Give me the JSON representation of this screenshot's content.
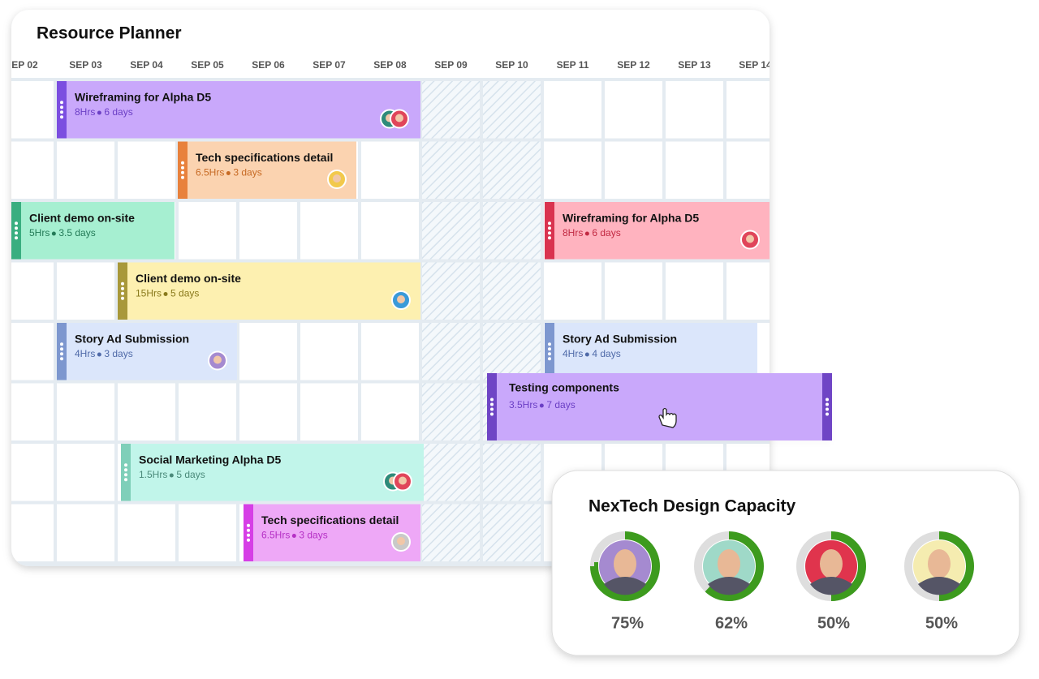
{
  "header": {
    "title": "Resource Planner"
  },
  "dates": [
    "EP 02",
    "SEP 03",
    "SEP 04",
    "SEP 05",
    "SEP 06",
    "SEP 07",
    "SEP 08",
    "SEP 09",
    "SEP 10",
    "SEP 11",
    "SEP 12",
    "SEP 13",
    "SEP 14"
  ],
  "tasks": [
    {
      "title": "Wireframing for Alpha D5",
      "hours": "8Hrs",
      "days": "6 days"
    },
    {
      "title": "Tech specifications detail",
      "hours": "6.5Hrs",
      "days": "3 days"
    },
    {
      "title": "Client demo on-site",
      "hours": "5Hrs",
      "days": "3.5 days"
    },
    {
      "title": "Wireframing for Alpha D5",
      "hours": "8Hrs",
      "days": "6 days"
    },
    {
      "title": "Client demo on-site",
      "hours": "15Hrs",
      "days": "5 days"
    },
    {
      "title": "Story Ad Submission",
      "hours": "4Hrs",
      "days": "3 days"
    },
    {
      "title": "Story Ad Submission",
      "hours": "4Hrs",
      "days": "4 days"
    },
    {
      "title": "Testing components",
      "hours": "3.5Hrs",
      "days": "7 days"
    },
    {
      "title": "Social Marketing Alpha D5",
      "hours": "1.5Hrs",
      "days": "5 days"
    },
    {
      "title": "Tech specifications detail",
      "hours": "6.5Hrs",
      "days": "3 days"
    }
  ],
  "capacity": {
    "title": "NexTech Design Capacity",
    "members": [
      {
        "percent": 75,
        "label": "75%"
      },
      {
        "percent": 62,
        "label": "62%"
      },
      {
        "percent": 50,
        "label": "50%"
      },
      {
        "percent": 50,
        "label": "50%"
      }
    ]
  }
}
